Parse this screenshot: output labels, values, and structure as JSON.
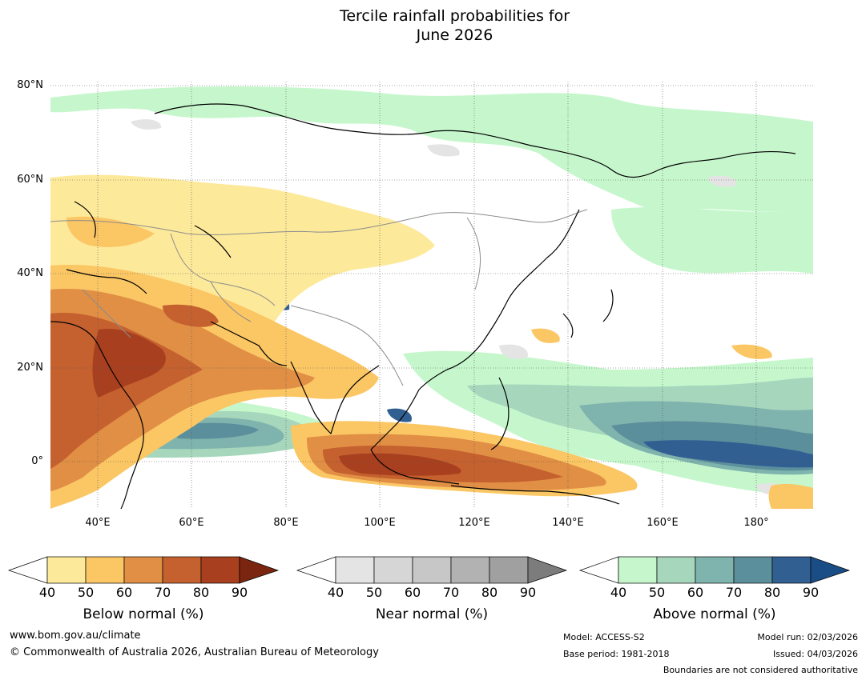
{
  "title_line1": "Tercile rainfall probabilities for",
  "title_line2": "June 2026",
  "map": {
    "lat_labels": [
      "80°N",
      "60°N",
      "40°N",
      "20°N",
      "0°"
    ],
    "lon_labels": [
      "40°E",
      "60°E",
      "80°E",
      "100°E",
      "120°E",
      "140°E",
      "160°E",
      "180°"
    ],
    "lon_range_deg": [
      30,
      192
    ],
    "lat_range_deg": [
      -10,
      81
    ]
  },
  "legends": [
    {
      "label": "Below normal (%)",
      "ticks": [
        "40",
        "50",
        "60",
        "70",
        "80",
        "90"
      ],
      "colors": [
        "#ffffff",
        "#fde99a",
        "#fbc664",
        "#e08f45",
        "#c5602f",
        "#a8401f",
        "#7a2510"
      ]
    },
    {
      "label": "Near normal (%)",
      "ticks": [
        "40",
        "50",
        "60",
        "70",
        "80",
        "90"
      ],
      "colors": [
        "#ffffff",
        "#e4e4e4",
        "#d6d6d6",
        "#c7c7c7",
        "#b2b2b2",
        "#a0a0a0",
        "#7c7c7c"
      ]
    },
    {
      "label": "Above normal (%)",
      "ticks": [
        "40",
        "50",
        "60",
        "70",
        "80",
        "90"
      ],
      "colors": [
        "#ffffff",
        "#c6f7cc",
        "#a6d6bc",
        "#7fb3ad",
        "#5b8f9c",
        "#325f92",
        "#1a4d85"
      ]
    }
  ],
  "footer": {
    "website": "www.bom.gov.au/climate",
    "copyright": "© Commonwealth of Australia 2026, Australian Bureau of Meteorology",
    "model": "Model: ACCESS-S2",
    "base_period": "Base period: 1981-2018",
    "model_run": "Model run: 02/03/2026",
    "issued": "Issued: 04/03/2026",
    "disclaimer": "Boundaries are not considered authoritative"
  },
  "colors": {
    "sea_green": "#c6f7cc",
    "outline": "#000000",
    "border": "#8c8c8c"
  }
}
